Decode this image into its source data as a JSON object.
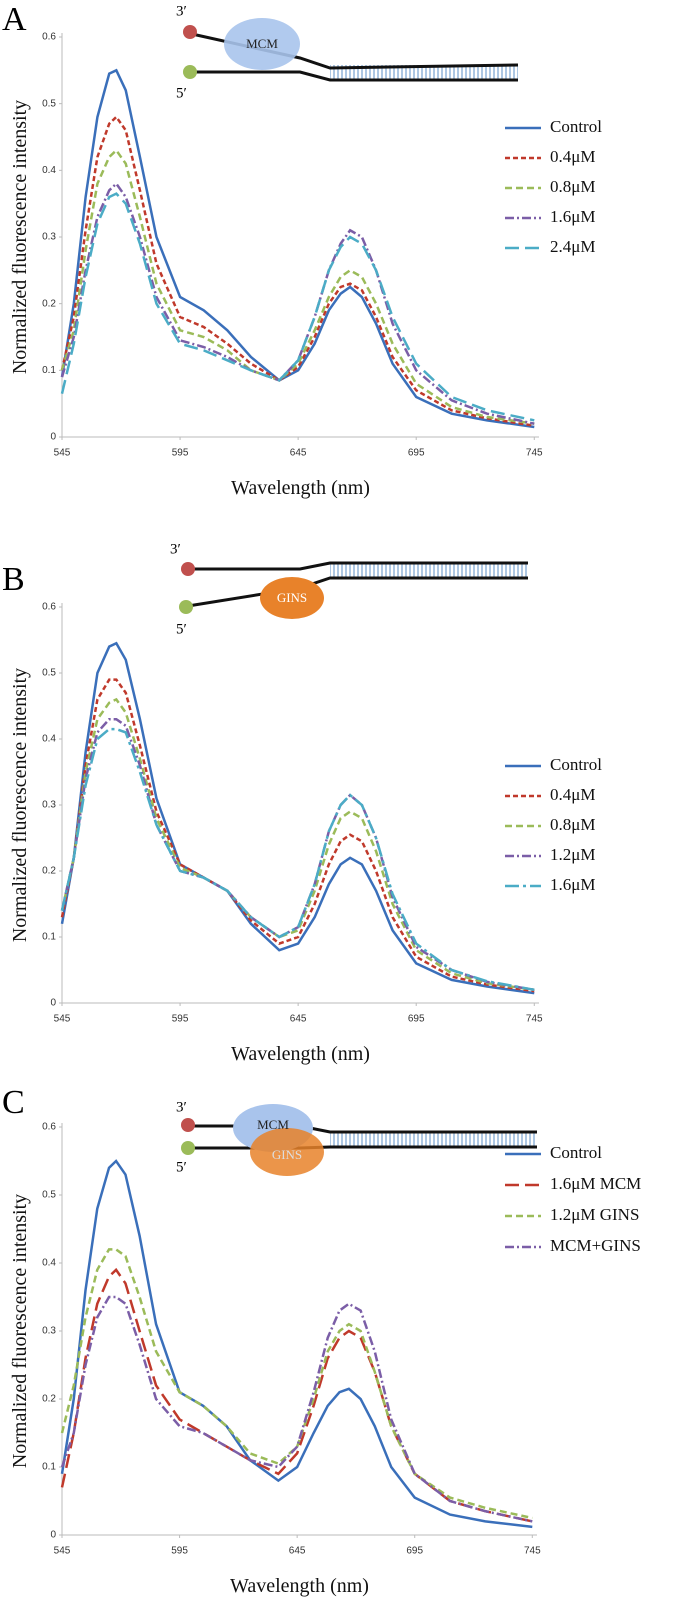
{
  "chart_data": [
    {
      "type": "line",
      "panel": "A",
      "annotations": [
        "3′",
        "5′",
        "MCM"
      ],
      "x_label": "Wavelength (nm)",
      "y_label": "Normalized fluorescence  intensity",
      "xlim": [
        545,
        747
      ],
      "xticks": [
        545,
        595,
        645,
        695,
        745
      ],
      "ylim": [
        0,
        0.6
      ],
      "yticks": [
        0,
        0.1,
        0.2,
        0.3,
        0.4,
        0.5,
        0.6
      ],
      "legend": "right",
      "x": [
        545,
        550,
        555,
        560,
        565,
        568,
        572,
        578,
        585,
        595,
        605,
        615,
        625,
        637,
        645,
        652,
        658,
        663,
        667,
        672,
        678,
        685,
        695,
        710,
        725,
        745
      ],
      "series": [
        {
          "name": "Control",
          "color": "#3a6fba",
          "dash": "solid",
          "values": [
            0.09,
            0.2,
            0.36,
            0.48,
            0.545,
            0.55,
            0.52,
            0.42,
            0.3,
            0.21,
            0.19,
            0.16,
            0.12,
            0.085,
            0.1,
            0.14,
            0.19,
            0.215,
            0.225,
            0.21,
            0.17,
            0.11,
            0.06,
            0.035,
            0.025,
            0.015
          ]
        },
        {
          "name": "0.4μM",
          "color": "#c0392b",
          "dash": "short-dash",
          "values": [
            0.1,
            0.18,
            0.31,
            0.42,
            0.47,
            0.48,
            0.46,
            0.37,
            0.26,
            0.18,
            0.165,
            0.14,
            0.11,
            0.085,
            0.105,
            0.15,
            0.2,
            0.225,
            0.23,
            0.22,
            0.18,
            0.12,
            0.07,
            0.04,
            0.028,
            0.017
          ]
        },
        {
          "name": "0.8μM",
          "color": "#9bbb59",
          "dash": "dash",
          "values": [
            0.1,
            0.16,
            0.28,
            0.38,
            0.42,
            0.43,
            0.41,
            0.33,
            0.23,
            0.16,
            0.15,
            0.13,
            0.1,
            0.085,
            0.11,
            0.16,
            0.21,
            0.24,
            0.25,
            0.24,
            0.2,
            0.14,
            0.08,
            0.045,
            0.03,
            0.02
          ]
        },
        {
          "name": "1.6μM",
          "color": "#7b5ea7",
          "dash": "dash-dot",
          "values": [
            0.09,
            0.15,
            0.25,
            0.33,
            0.37,
            0.38,
            0.36,
            0.3,
            0.21,
            0.145,
            0.135,
            0.12,
            0.1,
            0.085,
            0.115,
            0.18,
            0.25,
            0.29,
            0.31,
            0.3,
            0.25,
            0.17,
            0.1,
            0.055,
            0.035,
            0.02
          ]
        },
        {
          "name": "2.4μM",
          "color": "#4bacc6",
          "dash": "long-dash",
          "values": [
            0.065,
            0.14,
            0.24,
            0.32,
            0.36,
            0.365,
            0.35,
            0.29,
            0.2,
            0.14,
            0.13,
            0.115,
            0.1,
            0.085,
            0.115,
            0.18,
            0.25,
            0.285,
            0.3,
            0.29,
            0.25,
            0.18,
            0.11,
            0.06,
            0.04,
            0.025
          ]
        }
      ]
    },
    {
      "type": "line",
      "panel": "B",
      "annotations": [
        "3′",
        "5′",
        "GINS"
      ],
      "x_label": "Wavelength (nm)",
      "y_label": "Normalized fluorescence  intensity",
      "xlim": [
        545,
        747
      ],
      "xticks": [
        545,
        595,
        645,
        695,
        745
      ],
      "ylim": [
        0,
        0.6
      ],
      "yticks": [
        0,
        0.1,
        0.2,
        0.3,
        0.4,
        0.5,
        0.6
      ],
      "legend": "right",
      "x": [
        545,
        550,
        555,
        560,
        565,
        568,
        572,
        578,
        585,
        595,
        605,
        615,
        625,
        637,
        645,
        652,
        658,
        663,
        667,
        672,
        678,
        685,
        695,
        710,
        725,
        745
      ],
      "series": [
        {
          "name": "Control",
          "color": "#3a6fba",
          "dash": "solid",
          "values": [
            0.12,
            0.22,
            0.38,
            0.5,
            0.54,
            0.545,
            0.52,
            0.43,
            0.31,
            0.21,
            0.19,
            0.17,
            0.12,
            0.08,
            0.09,
            0.13,
            0.18,
            0.21,
            0.22,
            0.21,
            0.17,
            0.11,
            0.06,
            0.035,
            0.025,
            0.015
          ]
        },
        {
          "name": "0.4μM",
          "color": "#c0392b",
          "dash": "short-dash",
          "values": [
            0.13,
            0.22,
            0.36,
            0.46,
            0.49,
            0.49,
            0.47,
            0.39,
            0.29,
            0.21,
            0.19,
            0.17,
            0.125,
            0.09,
            0.1,
            0.15,
            0.21,
            0.245,
            0.255,
            0.245,
            0.2,
            0.13,
            0.07,
            0.04,
            0.028,
            0.018
          ]
        },
        {
          "name": "0.8μM",
          "color": "#9bbb59",
          "dash": "dash",
          "values": [
            0.14,
            0.22,
            0.35,
            0.43,
            0.455,
            0.46,
            0.44,
            0.37,
            0.28,
            0.205,
            0.19,
            0.17,
            0.13,
            0.1,
            0.11,
            0.17,
            0.24,
            0.28,
            0.29,
            0.28,
            0.23,
            0.15,
            0.08,
            0.045,
            0.03,
            0.02
          ]
        },
        {
          "name": "1.2μM",
          "color": "#7b5ea7",
          "dash": "dash-dot",
          "values": [
            0.14,
            0.22,
            0.34,
            0.41,
            0.43,
            0.43,
            0.42,
            0.36,
            0.27,
            0.2,
            0.19,
            0.17,
            0.13,
            0.1,
            0.115,
            0.18,
            0.26,
            0.3,
            0.315,
            0.3,
            0.25,
            0.16,
            0.085,
            0.05,
            0.032,
            0.02
          ]
        },
        {
          "name": "1.6μM",
          "color": "#4bacc6",
          "dash": "long-dash-dot",
          "values": [
            0.14,
            0.22,
            0.33,
            0.4,
            0.415,
            0.415,
            0.41,
            0.35,
            0.27,
            0.2,
            0.19,
            0.17,
            0.13,
            0.1,
            0.115,
            0.18,
            0.26,
            0.3,
            0.315,
            0.3,
            0.25,
            0.165,
            0.09,
            0.05,
            0.033,
            0.02
          ]
        }
      ]
    },
    {
      "type": "line",
      "panel": "C",
      "annotations": [
        "3′",
        "5′",
        "MCM",
        "GINS"
      ],
      "x_label": "Wavelength (nm)",
      "y_label": "Normalized fluorescence  intensity",
      "xlim": [
        545,
        747
      ],
      "xticks": [
        545,
        595,
        645,
        695,
        745
      ],
      "ylim": [
        0,
        0.6
      ],
      "yticks": [
        0,
        0.1,
        0.2,
        0.3,
        0.4,
        0.5,
        0.6
      ],
      "legend": "right",
      "x": [
        545,
        550,
        555,
        560,
        565,
        568,
        572,
        578,
        585,
        595,
        605,
        615,
        625,
        637,
        645,
        652,
        658,
        663,
        667,
        672,
        678,
        685,
        695,
        710,
        725,
        745
      ],
      "series": [
        {
          "name": "Control",
          "color": "#3a6fba",
          "dash": "solid",
          "values": [
            0.09,
            0.2,
            0.36,
            0.48,
            0.54,
            0.55,
            0.53,
            0.44,
            0.31,
            0.21,
            0.19,
            0.16,
            0.11,
            0.08,
            0.1,
            0.15,
            0.19,
            0.21,
            0.215,
            0.2,
            0.16,
            0.1,
            0.055,
            0.03,
            0.02,
            0.012
          ]
        },
        {
          "name": "1.6μM MCM",
          "color": "#c0392b",
          "dash": "long-dash",
          "values": [
            0.07,
            0.15,
            0.26,
            0.34,
            0.38,
            0.39,
            0.37,
            0.3,
            0.22,
            0.17,
            0.15,
            0.13,
            0.11,
            0.09,
            0.12,
            0.19,
            0.26,
            0.29,
            0.3,
            0.29,
            0.24,
            0.16,
            0.09,
            0.05,
            0.035,
            0.02
          ]
        },
        {
          "name": "1.2μM GINS",
          "color": "#9bbb59",
          "dash": "dash",
          "values": [
            0.15,
            0.22,
            0.32,
            0.39,
            0.42,
            0.42,
            0.41,
            0.35,
            0.27,
            0.21,
            0.19,
            0.16,
            0.12,
            0.105,
            0.13,
            0.2,
            0.27,
            0.3,
            0.31,
            0.3,
            0.24,
            0.16,
            0.09,
            0.055,
            0.04,
            0.025
          ]
        },
        {
          "name": "MCM+GINS",
          "color": "#7b5ea7",
          "dash": "dash-dot",
          "values": [
            0.1,
            0.15,
            0.25,
            0.32,
            0.35,
            0.35,
            0.34,
            0.28,
            0.2,
            0.16,
            0.15,
            0.13,
            0.11,
            0.1,
            0.13,
            0.21,
            0.29,
            0.33,
            0.34,
            0.33,
            0.27,
            0.17,
            0.09,
            0.05,
            0.035,
            0.02
          ]
        }
      ]
    }
  ]
}
